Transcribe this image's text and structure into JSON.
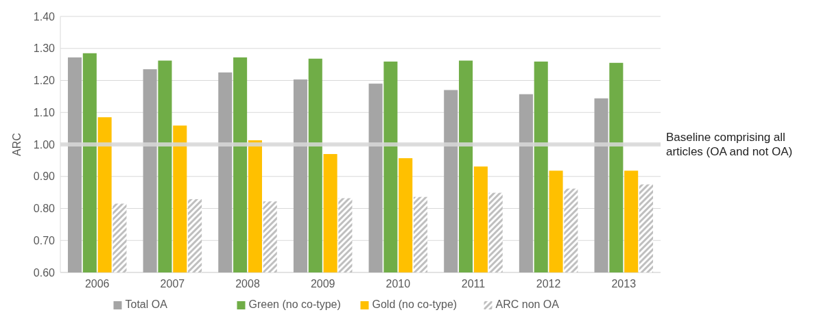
{
  "chart_data": {
    "type": "bar",
    "ylabel": "ARC",
    "categories": [
      "2006",
      "2007",
      "2008",
      "2009",
      "2010",
      "2011",
      "2012",
      "2013"
    ],
    "series": [
      {
        "name": "Total OA",
        "color": "#a5a5a5",
        "values": [
          1.272,
          1.235,
          1.225,
          1.203,
          1.19,
          1.17,
          1.157,
          1.144
        ]
      },
      {
        "name": "Green (no co-type)",
        "color": "#70ad47",
        "values": [
          1.285,
          1.262,
          1.272,
          1.268,
          1.259,
          1.262,
          1.259,
          1.255
        ]
      },
      {
        "name": "Gold (no co-type)",
        "color": "#ffc000",
        "values": [
          1.085,
          1.059,
          1.013,
          0.97,
          0.957,
          0.931,
          0.918,
          0.918
        ]
      },
      {
        "name": "ARC non OA",
        "color": "#bfbfbf",
        "values": [
          0.815,
          0.829,
          0.822,
          0.832,
          0.836,
          0.849,
          0.862,
          0.875
        ]
      }
    ],
    "ylim": [
      0.6,
      1.4
    ],
    "yticks": [
      {
        "value": 0.6,
        "label": "0.60"
      },
      {
        "value": 0.7,
        "label": "0.70"
      },
      {
        "value": 0.8,
        "label": "0.80"
      },
      {
        "value": 0.9,
        "label": "0.90"
      },
      {
        "value": 1.0,
        "label": "1.00"
      },
      {
        "value": 1.1,
        "label": "1.10"
      },
      {
        "value": 1.2,
        "label": "1.20"
      },
      {
        "value": 1.3,
        "label": "1.30"
      },
      {
        "value": 1.4,
        "label": "1.40"
      }
    ],
    "grid": "y",
    "legend": "bottom",
    "ref_lines": [
      {
        "axis": "y",
        "value": 1.0,
        "label": "Baseline comprising all articles (OA and not OA)",
        "color": "#d9d9d9"
      }
    ]
  }
}
